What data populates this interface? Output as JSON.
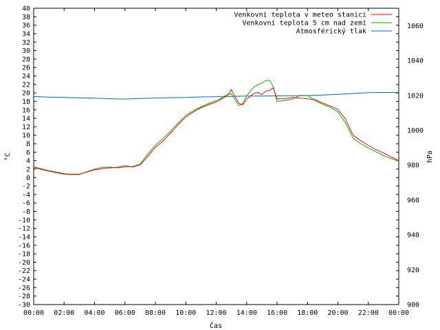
{
  "chart_data": {
    "type": "line",
    "title": "",
    "xlabel": "Čas",
    "ylabel": "°C",
    "y2label": "hPa",
    "xlim": [
      0,
      24
    ],
    "ylim": [
      -30,
      40
    ],
    "y2lim": [
      900,
      1070
    ],
    "x_ticks": [
      "00:00",
      "02:00",
      "04:00",
      "06:00",
      "08:00",
      "10:00",
      "12:00",
      "14:00",
      "16:00",
      "18:00",
      "20:00",
      "22:00",
      "00:00"
    ],
    "y_ticks": [
      40,
      38,
      36,
      34,
      32,
      30,
      28,
      26,
      24,
      22,
      20,
      18,
      16,
      14,
      12,
      10,
      8,
      6,
      4,
      2,
      0,
      -2,
      -4,
      -6,
      -8,
      -10,
      -12,
      -14,
      -16,
      -18,
      -20,
      -22,
      -24,
      -26,
      -28,
      -30
    ],
    "y2_ticks": [
      1060,
      1040,
      1020,
      1000,
      980,
      960,
      940,
      920,
      900
    ],
    "legend_position": "top-right",
    "grid": false,
    "series": [
      {
        "name": "Venkovní teplota v meteo stanici",
        "color": "#ff0000",
        "axis": "y",
        "x": [
          0,
          0.5,
          1,
          1.5,
          2,
          2.5,
          3,
          3.5,
          4,
          4.5,
          5,
          5.5,
          6,
          6.5,
          7,
          7.5,
          8,
          8.5,
          9,
          9.5,
          10,
          10.5,
          11,
          11.5,
          12,
          12.25,
          12.5,
          12.75,
          13,
          13.25,
          13.5,
          13.75,
          14,
          14.25,
          14.5,
          14.75,
          15,
          15.25,
          15.5,
          15.75,
          16,
          16.5,
          17,
          17.5,
          18,
          18.5,
          19,
          19.5,
          20,
          20.5,
          21,
          21.5,
          22,
          22.5,
          23,
          23.5,
          24
        ],
        "values": [
          2.5,
          2.1,
          1.6,
          1.3,
          0.9,
          0.8,
          0.8,
          1.3,
          1.8,
          2.1,
          2.3,
          2.4,
          2.8,
          2.5,
          3.0,
          5.0,
          7.2,
          8.6,
          10.5,
          12.5,
          14.3,
          15.5,
          16.5,
          17.2,
          17.9,
          18.3,
          18.9,
          19.4,
          20.8,
          19.0,
          17.5,
          17.2,
          18.5,
          19.3,
          19.9,
          20.1,
          19.6,
          20.4,
          20.6,
          21.2,
          18.6,
          18.6,
          18.9,
          18.8,
          18.6,
          18.4,
          17.6,
          16.9,
          16.1,
          13.8,
          10.0,
          8.7,
          7.6,
          6.6,
          5.8,
          4.9,
          4.0
        ]
      },
      {
        "name": "Venkovní teplota 5 cm nad zemí",
        "color": "#00b000",
        "axis": "y",
        "x": [
          0,
          0.5,
          1,
          1.5,
          2,
          2.5,
          3,
          3.5,
          4,
          4.5,
          5,
          5.5,
          6,
          6.5,
          7,
          7.5,
          8,
          8.5,
          9,
          9.5,
          10,
          10.5,
          11,
          11.5,
          12,
          12.25,
          12.5,
          12.75,
          13,
          13.25,
          13.5,
          13.75,
          14,
          14.25,
          14.5,
          14.75,
          15,
          15.25,
          15.5,
          15.75,
          16,
          16.5,
          17,
          17.5,
          18,
          18.5,
          19,
          19.5,
          20,
          20.5,
          21,
          21.5,
          22,
          22.5,
          23,
          23.5,
          24
        ],
        "values": [
          2.4,
          1.9,
          1.5,
          1.1,
          0.8,
          0.7,
          0.7,
          1.4,
          2.0,
          2.4,
          2.5,
          2.3,
          2.5,
          2.6,
          3.2,
          5.6,
          7.7,
          9.2,
          11.0,
          12.9,
          14.7,
          15.8,
          16.7,
          17.5,
          18.2,
          18.6,
          19.2,
          19.6,
          19.8,
          18.3,
          17.0,
          17.5,
          19.3,
          20.5,
          21.4,
          22.0,
          22.3,
          22.9,
          23.0,
          21.5,
          18.0,
          18.2,
          18.5,
          19.4,
          19.4,
          18.2,
          17.3,
          16.6,
          15.5,
          12.9,
          9.3,
          8.0,
          7.0,
          6.1,
          5.2,
          4.5,
          3.9
        ]
      },
      {
        "name": "Atmosférický tlak",
        "color": "#0066cc",
        "axis": "y2",
        "x": [
          0,
          1,
          2,
          3,
          4,
          5,
          6,
          7,
          8,
          9,
          10,
          11,
          12,
          13,
          14,
          15,
          16,
          17,
          18,
          19,
          20,
          21,
          22,
          23,
          24
        ],
        "values": [
          1019.3,
          1019.0,
          1018.8,
          1018.6,
          1018.4,
          1018.1,
          1017.9,
          1018.2,
          1018.5,
          1018.7,
          1018.8,
          1019.1,
          1019.2,
          1019.4,
          1019.6,
          1019.6,
          1019.7,
          1019.8,
          1019.9,
          1020.2,
          1020.6,
          1021.1,
          1021.6,
          1021.7,
          1021.7
        ]
      }
    ]
  }
}
